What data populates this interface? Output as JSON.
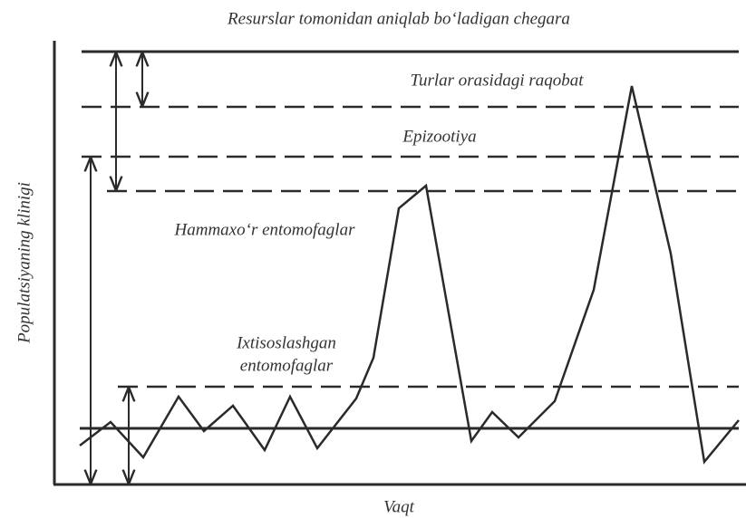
{
  "title": "Resurslar tomonidan aniqlab bo‘ladigan chegara",
  "labels": {
    "competition": "Turlar orasidagi raqobat",
    "epizootic": "Epizootiya",
    "generalists": "Hammaxo‘r entomofaglar",
    "specialists": [
      "Ixtisoslashgan",
      "entomofaglar"
    ]
  },
  "axes": {
    "y": "Populatsiyaning klinigi",
    "x": "Vaqt"
  }
}
